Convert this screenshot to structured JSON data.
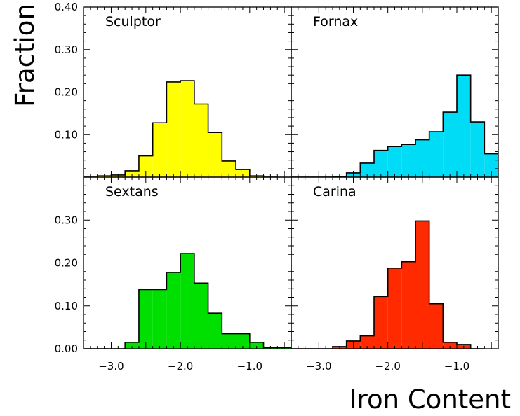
{
  "figure": {
    "ylabel": "Fraction",
    "xlabel": "Iron Content"
  },
  "chart_data": [
    {
      "type": "bar",
      "title": "Sculptor",
      "color": "#ffff00",
      "bin_width": 0.2,
      "bin_starts": [
        -3.4,
        -3.2,
        -3.0,
        -2.8,
        -2.6,
        -2.4,
        -2.2,
        -2.0,
        -1.8,
        -1.6,
        -1.4,
        -1.2,
        -1.0,
        -0.8
      ],
      "values": [
        0.0,
        0.003,
        0.005,
        0.015,
        0.05,
        0.128,
        0.224,
        0.227,
        0.172,
        0.105,
        0.038,
        0.018,
        0.003,
        0.0
      ],
      "xlim": [
        -3.4,
        -0.4
      ],
      "ylim": [
        0.0,
        0.4
      ],
      "yticks": [
        "0.40",
        "0.30",
        "0.20",
        "0.10"
      ]
    },
    {
      "type": "bar",
      "title": "Fornax",
      "color": "#00dcf5",
      "bin_width": 0.2,
      "bin_starts": [
        -3.4,
        -3.2,
        -3.0,
        -2.8,
        -2.6,
        -2.4,
        -2.2,
        -2.0,
        -1.8,
        -1.6,
        -1.4,
        -1.2,
        -1.0,
        -0.8,
        -0.6
      ],
      "values": [
        0.0,
        0.0,
        0.0,
        0.002,
        0.01,
        0.033,
        0.063,
        0.072,
        0.077,
        0.088,
        0.107,
        0.153,
        0.24,
        0.13,
        0.055
      ],
      "xlim": [
        -3.4,
        -0.4
      ],
      "ylim": [
        0.0,
        0.4
      ]
    },
    {
      "type": "bar",
      "title": "Sextans",
      "color": "#00e000",
      "bin_width": 0.2,
      "bin_starts": [
        -3.4,
        -3.2,
        -3.0,
        -2.8,
        -2.6,
        -2.4,
        -2.2,
        -2.0,
        -1.8,
        -1.6,
        -1.4,
        -1.2,
        -1.0,
        -0.8,
        -0.6
      ],
      "values": [
        0.0,
        0.0,
        0.0,
        0.015,
        0.138,
        0.138,
        0.178,
        0.222,
        0.153,
        0.083,
        0.035,
        0.035,
        0.015,
        0.003,
        0.003
      ],
      "xlim": [
        -3.4,
        -0.4
      ],
      "ylim": [
        0.0,
        0.4
      ],
      "yticks": [
        "0.30",
        "0.20",
        "0.10",
        "0.00"
      ],
      "xticks": [
        "−3.0",
        "−2.0",
        "−1.0"
      ]
    },
    {
      "type": "bar",
      "title": "Carina",
      "color": "#ff2a00",
      "bin_width": 0.2,
      "bin_starts": [
        -3.4,
        -3.2,
        -3.0,
        -2.8,
        -2.6,
        -2.4,
        -2.2,
        -2.0,
        -1.8,
        -1.6,
        -1.4,
        -1.2,
        -1.0,
        -0.8
      ],
      "values": [
        0.0,
        0.0,
        0.0,
        0.005,
        0.018,
        0.03,
        0.122,
        0.188,
        0.203,
        0.298,
        0.105,
        0.015,
        0.01,
        0.0
      ],
      "xlim": [
        -3.4,
        -0.4
      ],
      "ylim": [
        0.0,
        0.4
      ],
      "xticks": [
        "−3.0",
        "−2.0",
        "−1.0"
      ]
    }
  ]
}
